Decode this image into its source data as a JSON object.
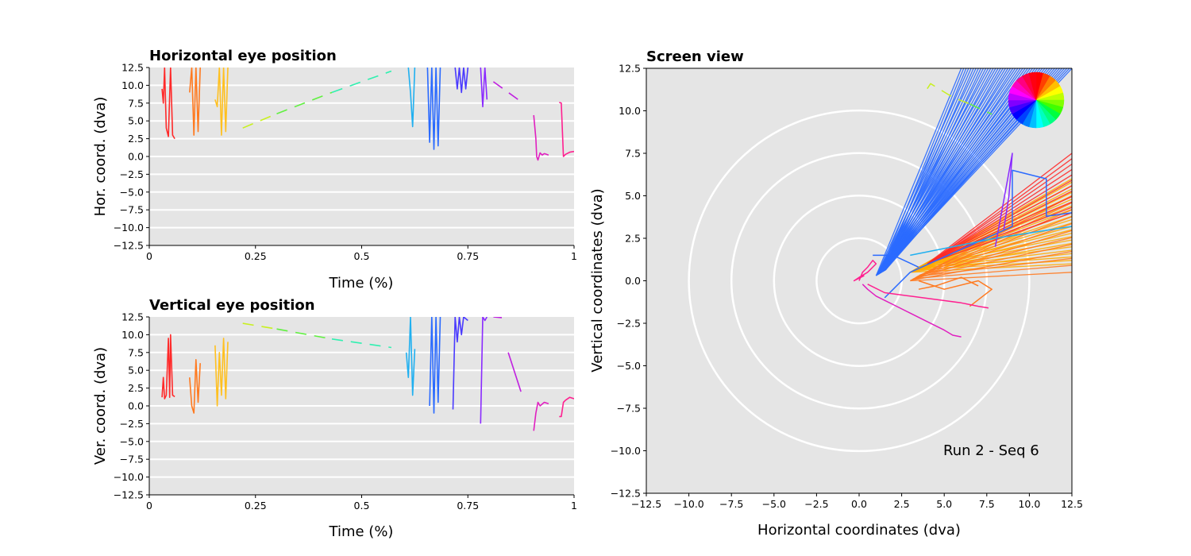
{
  "chart_data": [
    {
      "type": "line",
      "title": "Horizontal eye position",
      "xlabel": "Time (%)",
      "ylabel": "Hor. coord. (dva)",
      "xlim": [
        0,
        1
      ],
      "ylim": [
        -12.5,
        12.5
      ],
      "xticks": [
        0,
        0.25,
        0.5,
        0.75,
        1
      ],
      "xticklabels": [
        "0",
        "0.25",
        "0.5",
        "0.75",
        "1"
      ],
      "yticks": [
        -12.5,
        -10.0,
        -7.5,
        -5.0,
        -2.5,
        0.0,
        2.5,
        5.0,
        7.5,
        10.0,
        12.5
      ],
      "yticklabels": [
        "−12.5",
        "−10.0",
        "−7.5",
        "−5.0",
        "−2.5",
        "0.0",
        "2.5",
        "5.0",
        "7.5",
        "10.0",
        "12.5"
      ],
      "grid": "horizontal",
      "background": "#e5e5e5",
      "segments": [
        {
          "color": "#ff2a2a",
          "style": "solid",
          "x": [
            0.03,
            0.033,
            0.036,
            0.04,
            0.045,
            0.05,
            0.055,
            0.06
          ],
          "y": [
            9.5,
            7.5,
            12.5,
            4.0,
            2.8,
            12.5,
            3.0,
            2.5
          ]
        },
        {
          "color": "#ff7a20",
          "style": "solid",
          "x": [
            0.095,
            0.1,
            0.105,
            0.11,
            0.115,
            0.12
          ],
          "y": [
            9.0,
            12.5,
            3.0,
            12.5,
            3.5,
            12.5
          ]
        },
        {
          "color": "#ffc020",
          "style": "solid",
          "x": [
            0.155,
            0.16,
            0.165,
            0.17,
            0.175,
            0.18,
            0.185
          ],
          "y": [
            8.0,
            7.0,
            12.5,
            3.0,
            12.5,
            3.5,
            12.5
          ]
        },
        {
          "color": "#c8f020",
          "style": "dashed",
          "x": [
            0.22,
            0.3
          ],
          "y": [
            4.0,
            6.0
          ]
        },
        {
          "color": "#60f040",
          "style": "dashed",
          "x": [
            0.3,
            0.43
          ],
          "y": [
            6.0,
            9.0
          ]
        },
        {
          "color": "#30f0b0",
          "style": "dashed",
          "x": [
            0.43,
            0.57
          ],
          "y": [
            9.0,
            12.0
          ]
        },
        {
          "color": "#20b0f0",
          "style": "solid",
          "x": [
            0.61,
            0.615,
            0.62,
            0.625
          ],
          "y": [
            12.5,
            9.0,
            4.2,
            12.5
          ]
        },
        {
          "color": "#2a6aff",
          "style": "solid",
          "x": [
            0.655,
            0.66,
            0.665,
            0.67,
            0.675,
            0.68,
            0.685
          ],
          "y": [
            12.5,
            2.0,
            12.5,
            1.0,
            12.5,
            1.5,
            12.5
          ]
        },
        {
          "color": "#4a3aff",
          "style": "solid",
          "x": [
            0.72,
            0.725,
            0.73,
            0.735,
            0.74,
            0.745,
            0.75
          ],
          "y": [
            12.5,
            9.5,
            12.5,
            9.0,
            12.5,
            9.5,
            12.5
          ]
        },
        {
          "color": "#8a2aff",
          "style": "solid",
          "x": [
            0.78,
            0.785,
            0.79,
            0.795
          ],
          "y": [
            12.5,
            7.0,
            12.5,
            8.0
          ]
        },
        {
          "color": "#c020e0",
          "style": "dashed",
          "x": [
            0.81,
            0.88
          ],
          "y": [
            10.5,
            7.5
          ]
        },
        {
          "color": "#e020c0",
          "style": "solid",
          "x": [
            0.905,
            0.91,
            0.912,
            0.915,
            0.92,
            0.925,
            0.93,
            0.935,
            0.94
          ],
          "y": [
            5.8,
            2.5,
            0.0,
            -0.5,
            0.5,
            0.2,
            0.4,
            0.3,
            0.2
          ]
        },
        {
          "color": "#ff2090",
          "style": "solid",
          "x": [
            0.965,
            0.97,
            0.975,
            0.98,
            0.99,
            1.0
          ],
          "y": [
            7.6,
            7.5,
            0.0,
            0.3,
            0.6,
            0.7
          ]
        }
      ]
    },
    {
      "type": "line",
      "title": "Vertical eye position",
      "xlabel": "Time (%)",
      "ylabel": "Ver. coord. (dva)",
      "xlim": [
        0,
        1
      ],
      "ylim": [
        -12.5,
        12.5
      ],
      "xticks": [
        0,
        0.25,
        0.5,
        0.75,
        1
      ],
      "xticklabels": [
        "0",
        "0.25",
        "0.5",
        "0.75",
        "1"
      ],
      "yticks": [
        -12.5,
        -10.0,
        -7.5,
        -5.0,
        -2.5,
        0.0,
        2.5,
        5.0,
        7.5,
        10.0,
        12.5
      ],
      "yticklabels": [
        "−12.5",
        "−10.0",
        "−7.5",
        "−5.0",
        "−2.5",
        "0.0",
        "2.5",
        "5.0",
        "7.5",
        "10.0",
        "12.5"
      ],
      "grid": "horizontal",
      "background": "#e5e5e5",
      "segments": [
        {
          "color": "#ff2a2a",
          "style": "solid",
          "x": [
            0.03,
            0.033,
            0.036,
            0.04,
            0.045,
            0.048,
            0.05,
            0.055,
            0.06
          ],
          "y": [
            1.2,
            4.0,
            1.0,
            1.5,
            9.5,
            1.2,
            10.0,
            1.5,
            1.3
          ]
        },
        {
          "color": "#ff7a20",
          "style": "solid",
          "x": [
            0.095,
            0.1,
            0.105,
            0.11,
            0.115,
            0.12
          ],
          "y": [
            4.0,
            0.0,
            -1.0,
            6.5,
            0.5,
            6.0
          ]
        },
        {
          "color": "#ffc020",
          "style": "solid",
          "x": [
            0.155,
            0.16,
            0.165,
            0.17,
            0.175,
            0.18,
            0.185
          ],
          "y": [
            8.5,
            0.0,
            7.5,
            1.5,
            9.5,
            1.0,
            9.0
          ]
        },
        {
          "color": "#c8f020",
          "style": "dashed",
          "x": [
            0.22,
            0.3
          ],
          "y": [
            11.6,
            10.8
          ]
        },
        {
          "color": "#60f040",
          "style": "dashed",
          "x": [
            0.3,
            0.43
          ],
          "y": [
            10.8,
            9.4
          ]
        },
        {
          "color": "#30f0b0",
          "style": "dashed",
          "x": [
            0.43,
            0.57
          ],
          "y": [
            9.4,
            8.2
          ]
        },
        {
          "color": "#20b0f0",
          "style": "solid",
          "x": [
            0.605,
            0.61,
            0.615,
            0.62,
            0.625
          ],
          "y": [
            7.5,
            4.0,
            12.5,
            1.5,
            8.0
          ]
        },
        {
          "color": "#2a6aff",
          "style": "solid",
          "x": [
            0.66,
            0.665,
            0.67,
            0.675,
            0.68,
            0.685
          ],
          "y": [
            0.0,
            12.5,
            -1.0,
            12.5,
            0.5,
            12.5
          ]
        },
        {
          "color": "#4a3aff",
          "style": "solid",
          "x": [
            0.715,
            0.72,
            0.725,
            0.73,
            0.735,
            0.74,
            0.75
          ],
          "y": [
            -0.5,
            12.5,
            9.0,
            12.5,
            10.0,
            12.5,
            12.0
          ]
        },
        {
          "color": "#8a2aff",
          "style": "solid",
          "x": [
            0.78,
            0.785,
            0.79,
            0.795
          ],
          "y": [
            -2.5,
            12.5,
            12.0,
            12.5
          ]
        },
        {
          "color": "#c020e0",
          "style": "dashed",
          "x": [
            0.81,
            0.83
          ],
          "y": [
            12.5,
            12.4
          ]
        },
        {
          "color": "#c020e0",
          "style": "solid",
          "x": [
            0.845,
            0.875
          ],
          "y": [
            7.5,
            2.0
          ]
        },
        {
          "color": "#e020c0",
          "style": "solid",
          "x": [
            0.905,
            0.91,
            0.915,
            0.92,
            0.93,
            0.94
          ],
          "y": [
            -3.5,
            -1.0,
            0.5,
            0.0,
            0.5,
            0.3
          ]
        },
        {
          "color": "#ff2090",
          "style": "solid",
          "x": [
            0.965,
            0.97,
            0.975,
            0.98,
            0.99,
            1.0
          ],
          "y": [
            -1.5,
            -1.5,
            0.5,
            0.8,
            1.2,
            1.0
          ]
        }
      ]
    },
    {
      "type": "line",
      "title": "Screen view",
      "xlabel": "Horizontal coordinates (dva)",
      "ylabel": "Vertical coordinates (dva)",
      "xlim": [
        -12.5,
        12.5
      ],
      "ylim": [
        -12.5,
        12.5
      ],
      "xticks": [
        -12.5,
        -10.0,
        -7.5,
        -5.0,
        -2.5,
        0.0,
        2.5,
        5.0,
        7.5,
        10.0,
        12.5
      ],
      "xticklabels": [
        "−12.5",
        "−10.0",
        "−7.5",
        "−5.0",
        "−2.5",
        "0.0",
        "2.5",
        "5.0",
        "7.5",
        "10.0",
        "12.5"
      ],
      "yticks": [
        -12.5,
        -10.0,
        -7.5,
        -5.0,
        -2.5,
        0.0,
        2.5,
        5.0,
        7.5,
        10.0,
        12.5
      ],
      "yticklabels": [
        "−12.5",
        "−10.0",
        "−7.5",
        "−5.0",
        "−2.5",
        "0.0",
        "2.5",
        "5.0",
        "7.5",
        "10.0",
        "12.5"
      ],
      "background": "#e5e5e5",
      "rings": [
        2.5,
        5.0,
        7.5,
        10.0
      ],
      "annotation": "Run 2 - Seq 6",
      "colorwheel_colors": [
        "#ff0000",
        "#ff4000",
        "#ff8000",
        "#ffbf00",
        "#ffff00",
        "#bfff00",
        "#80ff00",
        "#40ff00",
        "#00ff40",
        "#00ff80",
        "#00ffbf",
        "#00ffff",
        "#00bfff",
        "#0080ff",
        "#0040ff",
        "#0000ff",
        "#4000ff",
        "#8000ff",
        "#bf00ff",
        "#ff00ff",
        "#ff00bf",
        "#ff0080",
        "#ff0040",
        "#ff0010"
      ],
      "fans": [
        {
          "color": "#ffaa00",
          "origin": [
            3.0,
            0.5
          ],
          "to_x": 12.5,
          "y_range": [
            1.0,
            6.0
          ],
          "count": 26
        },
        {
          "color": "#ff7a20",
          "origin": [
            3.0,
            0.0
          ],
          "to_x": 12.5,
          "y_range": [
            0.5,
            5.0
          ],
          "count": 12
        },
        {
          "color": "#ff2a2a",
          "origin": [
            4.0,
            1.0
          ],
          "to_x": 12.5,
          "y_range": [
            4.0,
            7.5
          ],
          "count": 12
        },
        {
          "color": "#2a6aff",
          "origin": [
            1.0,
            0.3
          ],
          "to_y": 12.5,
          "x_range": [
            6.0,
            12.5
          ],
          "count": 46
        }
      ],
      "paths": [
        {
          "color": "#2a6aff",
          "style": "solid",
          "x": [
            1.5,
            3.0,
            9.0,
            9.0,
            11.0,
            11.0,
            12.5
          ],
          "y": [
            -1.0,
            0.5,
            3.2,
            6.5,
            6.0,
            3.8,
            4.0
          ]
        },
        {
          "color": "#2a6aff",
          "style": "solid",
          "x": [
            0.8,
            2.0,
            3.5
          ],
          "y": [
            1.5,
            1.5,
            0.8
          ]
        },
        {
          "color": "#8a2aff",
          "style": "solid",
          "x": [
            8.5,
            8.8,
            9.0,
            8.0
          ],
          "y": [
            3.0,
            5.0,
            7.5,
            2.0
          ]
        },
        {
          "color": "#ff7a20",
          "style": "solid",
          "x": [
            3.5,
            5.0,
            7.0,
            7.8,
            6.5
          ],
          "y": [
            0.0,
            -0.5,
            0.0,
            -0.5,
            -1.5
          ]
        },
        {
          "color": "#ff7a20",
          "style": "solid",
          "x": [
            3.5,
            4.5,
            6.0,
            7.0
          ],
          "y": [
            -0.5,
            -0.3,
            0.2,
            -0.3
          ]
        },
        {
          "color": "#20b0f0",
          "style": "solid",
          "x": [
            3.0,
            8.0,
            12.5
          ],
          "y": [
            1.5,
            2.5,
            3.2
          ]
        },
        {
          "color": "#c8f020",
          "style": "dashed",
          "x": [
            4.0,
            4.2,
            5.5,
            6.5
          ],
          "y": [
            11.3,
            11.6,
            10.8,
            10.4
          ]
        },
        {
          "color": "#60f040",
          "style": "dashed",
          "x": [
            6.5,
            7.8
          ],
          "y": [
            10.4,
            9.8
          ]
        },
        {
          "color": "#e020c0",
          "style": "solid",
          "x": [
            0.2,
            0.5,
            1.0,
            2.0,
            3.0,
            4.0,
            5.0,
            5.5,
            6.0
          ],
          "y": [
            -0.2,
            -0.5,
            -0.9,
            -1.4,
            -1.9,
            -2.4,
            -2.9,
            -3.2,
            -3.3
          ]
        },
        {
          "color": "#ff2090",
          "style": "solid",
          "x": [
            0.0,
            0.2,
            0.5,
            0.8,
            1.0,
            0.5,
            0.0,
            -0.3,
            0.3
          ],
          "y": [
            0.0,
            0.5,
            0.8,
            1.2,
            1.0,
            0.5,
            0.2,
            0.0,
            0.3
          ]
        },
        {
          "color": "#ff2090",
          "style": "solid",
          "x": [
            0.5,
            1.5,
            3.0,
            4.5,
            6.0,
            7.0,
            7.6
          ],
          "y": [
            -0.2,
            -0.7,
            -0.9,
            -1.1,
            -1.3,
            -1.5,
            -1.6
          ]
        }
      ]
    }
  ]
}
